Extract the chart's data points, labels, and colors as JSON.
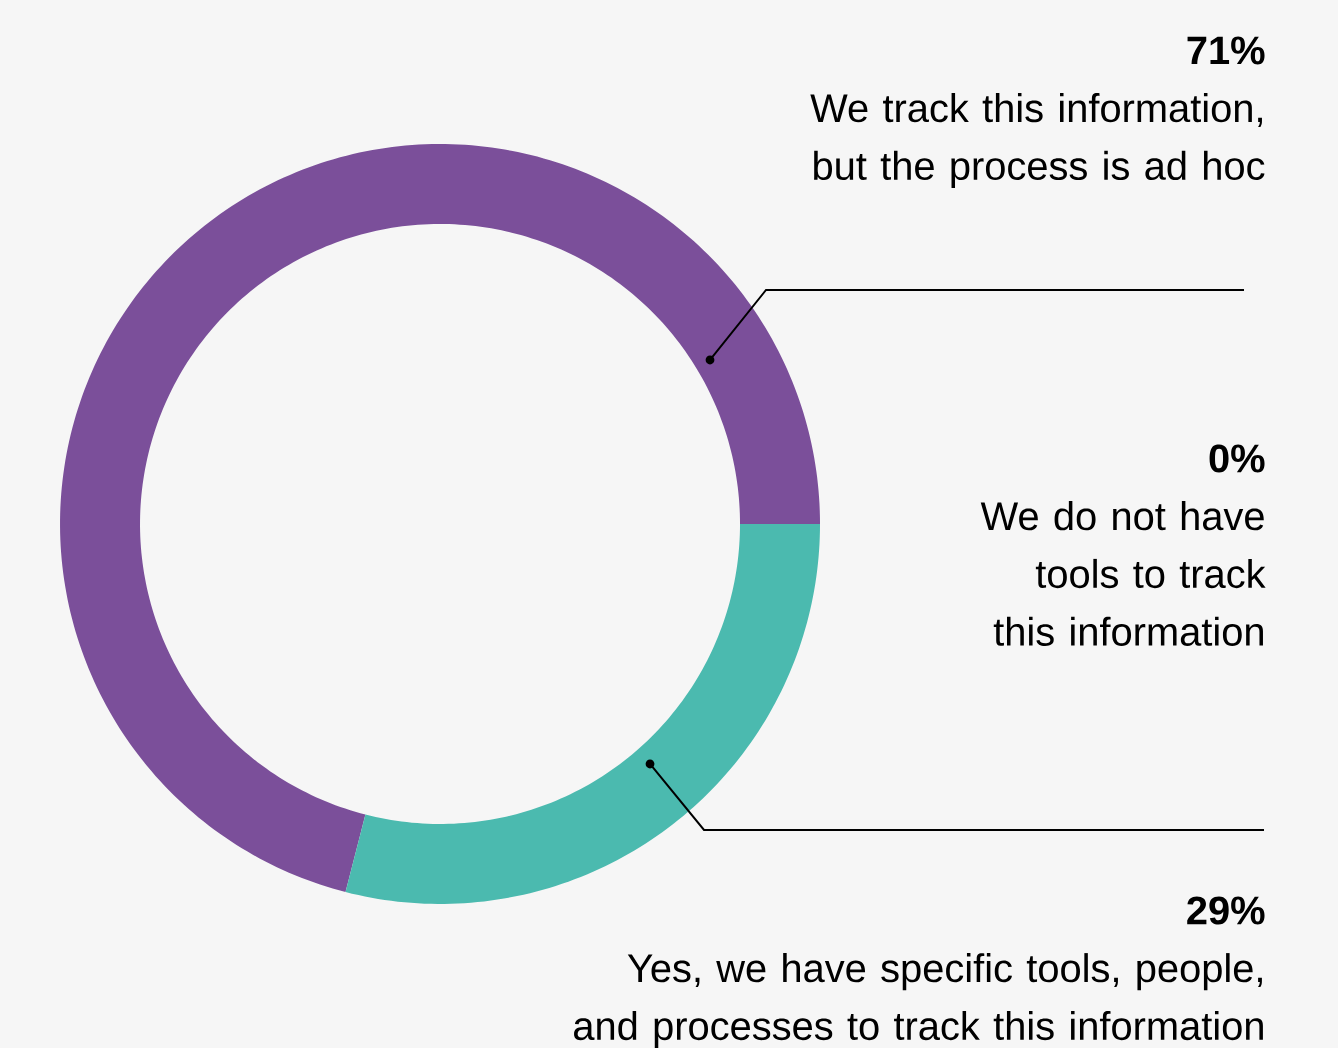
{
  "chart_data": {
    "type": "donut",
    "categories": [
      "We track this information, but the process is ad hoc",
      "We do not have tools to track this information",
      "Yes, we have specific tools, people, and processes to track this information"
    ],
    "values": [
      71,
      0,
      29
    ],
    "colors": [
      "#7b4f9a",
      "#9e9e9e",
      "#4bbaaf"
    ],
    "value_labels": [
      "71%",
      "0%",
      "29%"
    ]
  }
}
